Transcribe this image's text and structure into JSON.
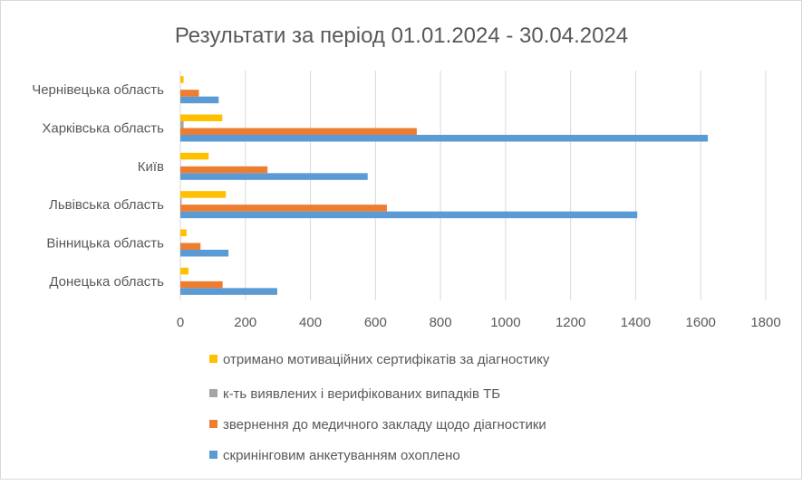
{
  "chart_data": {
    "type": "bar",
    "orientation": "horizontal",
    "title": "Результати за період 01.01.2024 - 30.04.2024",
    "categories": [
      "Донецька область",
      "Вінницька область",
      "Львівська область",
      "Київ",
      "Харківська область",
      "Чернівецька область"
    ],
    "series": [
      {
        "name": "скринінговим анкетуванням охоплено",
        "color": "#5B9BD5",
        "values": [
          298,
          148,
          1405,
          576,
          1622,
          118
        ]
      },
      {
        "name": "звернення  до медичного закладу щодо діагностики",
        "color": "#ED7D31",
        "values": [
          130,
          62,
          635,
          268,
          727,
          57
        ]
      },
      {
        "name": "к-ть виявлених і верифікованих випадків ТБ",
        "color": "#A5A5A5",
        "values": [
          1,
          1,
          4,
          1,
          10,
          0
        ]
      },
      {
        "name": "отримано мотиваційних сертифікатів за діагностику",
        "color": "#FFC000",
        "values": [
          25,
          19,
          140,
          87,
          129,
          10
        ]
      }
    ],
    "xlim": [
      0,
      1800
    ],
    "xticks": [
      "0",
      "200",
      "400",
      "600",
      "800",
      "1000",
      "1200",
      "1400",
      "1600",
      "1800"
    ],
    "grid": true,
    "legend_position": "bottom",
    "legend_order": [
      3,
      2,
      1,
      0
    ]
  }
}
